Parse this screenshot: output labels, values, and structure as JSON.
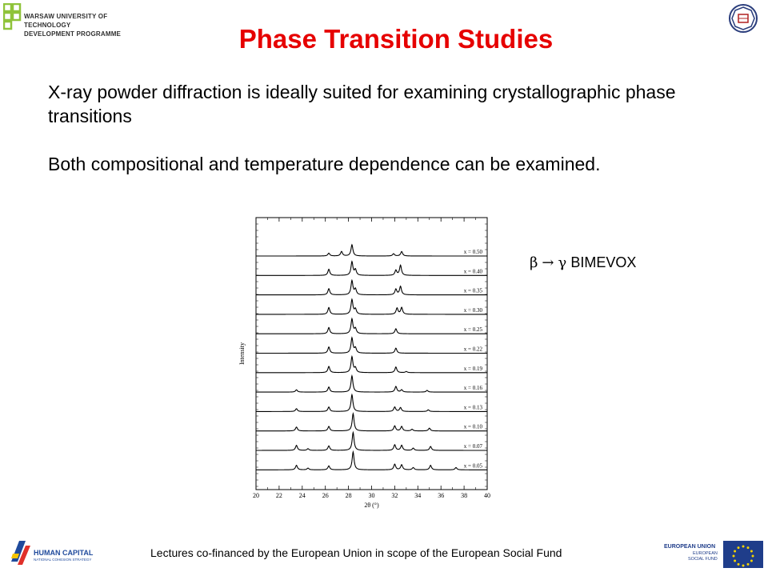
{
  "header": {
    "org_line1": "WARSAW UNIVERSITY OF TECHNOLOGY",
    "org_line2": "DEVELOPMENT PROGRAMME",
    "logo_icon": "wut-development-logo",
    "emblem_icon": "university-emblem"
  },
  "title": "Phase Transition Studies",
  "body": {
    "paragraph1": "X-ray powder diffraction is ideally suited for examining crystallographic phase transitions",
    "paragraph2": "Both compositional and temperature dependence can be examined."
  },
  "annotation": {
    "beta": "β",
    "arrow": "→",
    "gamma": "γ",
    "label": "BIMEVOX"
  },
  "chart_data": {
    "type": "line",
    "xlabel": "2θ (°)",
    "ylabel": "Intensity",
    "xlim": [
      20,
      40
    ],
    "x_ticks": [
      20,
      22,
      24,
      26,
      28,
      30,
      32,
      34,
      36,
      38,
      40
    ],
    "series": [
      {
        "name": "x = 0.50",
        "peaks": [
          [
            26.3,
            0.25
          ],
          [
            27.4,
            0.4
          ],
          [
            28.3,
            1.0
          ],
          [
            31.9,
            0.2
          ],
          [
            32.6,
            0.4
          ]
        ]
      },
      {
        "name": "x = 0.40",
        "peaks": [
          [
            26.3,
            0.55
          ],
          [
            28.3,
            1.2
          ],
          [
            28.6,
            0.5
          ],
          [
            32.1,
            0.45
          ],
          [
            32.5,
            0.9
          ]
        ]
      },
      {
        "name": "x = 0.35",
        "peaks": [
          [
            26.3,
            0.55
          ],
          [
            28.3,
            1.25
          ],
          [
            28.6,
            0.5
          ],
          [
            32.1,
            0.5
          ],
          [
            32.5,
            0.75
          ]
        ]
      },
      {
        "name": "x = 0.30",
        "peaks": [
          [
            26.3,
            0.6
          ],
          [
            28.3,
            1.3
          ],
          [
            28.6,
            0.45
          ],
          [
            32.2,
            0.55
          ],
          [
            32.6,
            0.6
          ]
        ]
      },
      {
        "name": "x = 0.25",
        "peaks": [
          [
            26.3,
            0.55
          ],
          [
            28.3,
            1.3
          ],
          [
            28.6,
            0.45
          ],
          [
            32.1,
            0.45
          ]
        ]
      },
      {
        "name": "x = 0.22",
        "peaks": [
          [
            26.3,
            0.55
          ],
          [
            28.3,
            1.35
          ],
          [
            28.6,
            0.45
          ],
          [
            32.1,
            0.45
          ]
        ]
      },
      {
        "name": "x = 0.19",
        "peaks": [
          [
            26.3,
            0.55
          ],
          [
            28.3,
            1.4
          ],
          [
            28.6,
            0.4
          ],
          [
            32.1,
            0.5
          ],
          [
            33.0,
            0.1
          ]
        ]
      },
      {
        "name": "x = 0.16",
        "peaks": [
          [
            23.5,
            0.2
          ],
          [
            26.3,
            0.45
          ],
          [
            28.3,
            1.45
          ],
          [
            32.1,
            0.5
          ],
          [
            32.6,
            0.2
          ],
          [
            34.8,
            0.15
          ]
        ]
      },
      {
        "name": "x = 0.13",
        "peaks": [
          [
            23.5,
            0.25
          ],
          [
            26.3,
            0.4
          ],
          [
            28.3,
            1.5
          ],
          [
            32.0,
            0.4
          ],
          [
            32.5,
            0.35
          ],
          [
            34.9,
            0.15
          ]
        ]
      },
      {
        "name": "x = 0.10",
        "peaks": [
          [
            23.5,
            0.35
          ],
          [
            26.3,
            0.4
          ],
          [
            28.4,
            1.55
          ],
          [
            32.0,
            0.45
          ],
          [
            32.6,
            0.4
          ],
          [
            33.5,
            0.15
          ],
          [
            35.0,
            0.25
          ]
        ]
      },
      {
        "name": "x = 0.07",
        "peaks": [
          [
            23.5,
            0.45
          ],
          [
            24.5,
            0.15
          ],
          [
            26.3,
            0.4
          ],
          [
            28.4,
            1.6
          ],
          [
            32.0,
            0.5
          ],
          [
            32.6,
            0.45
          ],
          [
            33.6,
            0.2
          ],
          [
            35.1,
            0.35
          ]
        ]
      },
      {
        "name": "x = 0.05",
        "peaks": [
          [
            23.5,
            0.4
          ],
          [
            24.5,
            0.15
          ],
          [
            26.3,
            0.35
          ],
          [
            28.4,
            1.6
          ],
          [
            32.0,
            0.5
          ],
          [
            32.6,
            0.45
          ],
          [
            33.6,
            0.2
          ],
          [
            35.1,
            0.4
          ],
          [
            37.3,
            0.2
          ]
        ]
      }
    ]
  },
  "footer": {
    "text": "Lectures co-financed by the European Union in scope of the European Social Fund",
    "hc_line1": "HUMAN CAPITAL",
    "hc_line2": "NATIONAL COHESION STRATEGY",
    "eu_line1": "EUROPEAN UNION",
    "eu_line2": "EUROPEAN",
    "eu_line3": "SOCIAL FUND",
    "hc_icon": "human-capital-logo",
    "eu_icon": "eu-flag-icon"
  },
  "colors": {
    "title": "#e60000",
    "text": "#000000",
    "background": "#ffffff"
  }
}
